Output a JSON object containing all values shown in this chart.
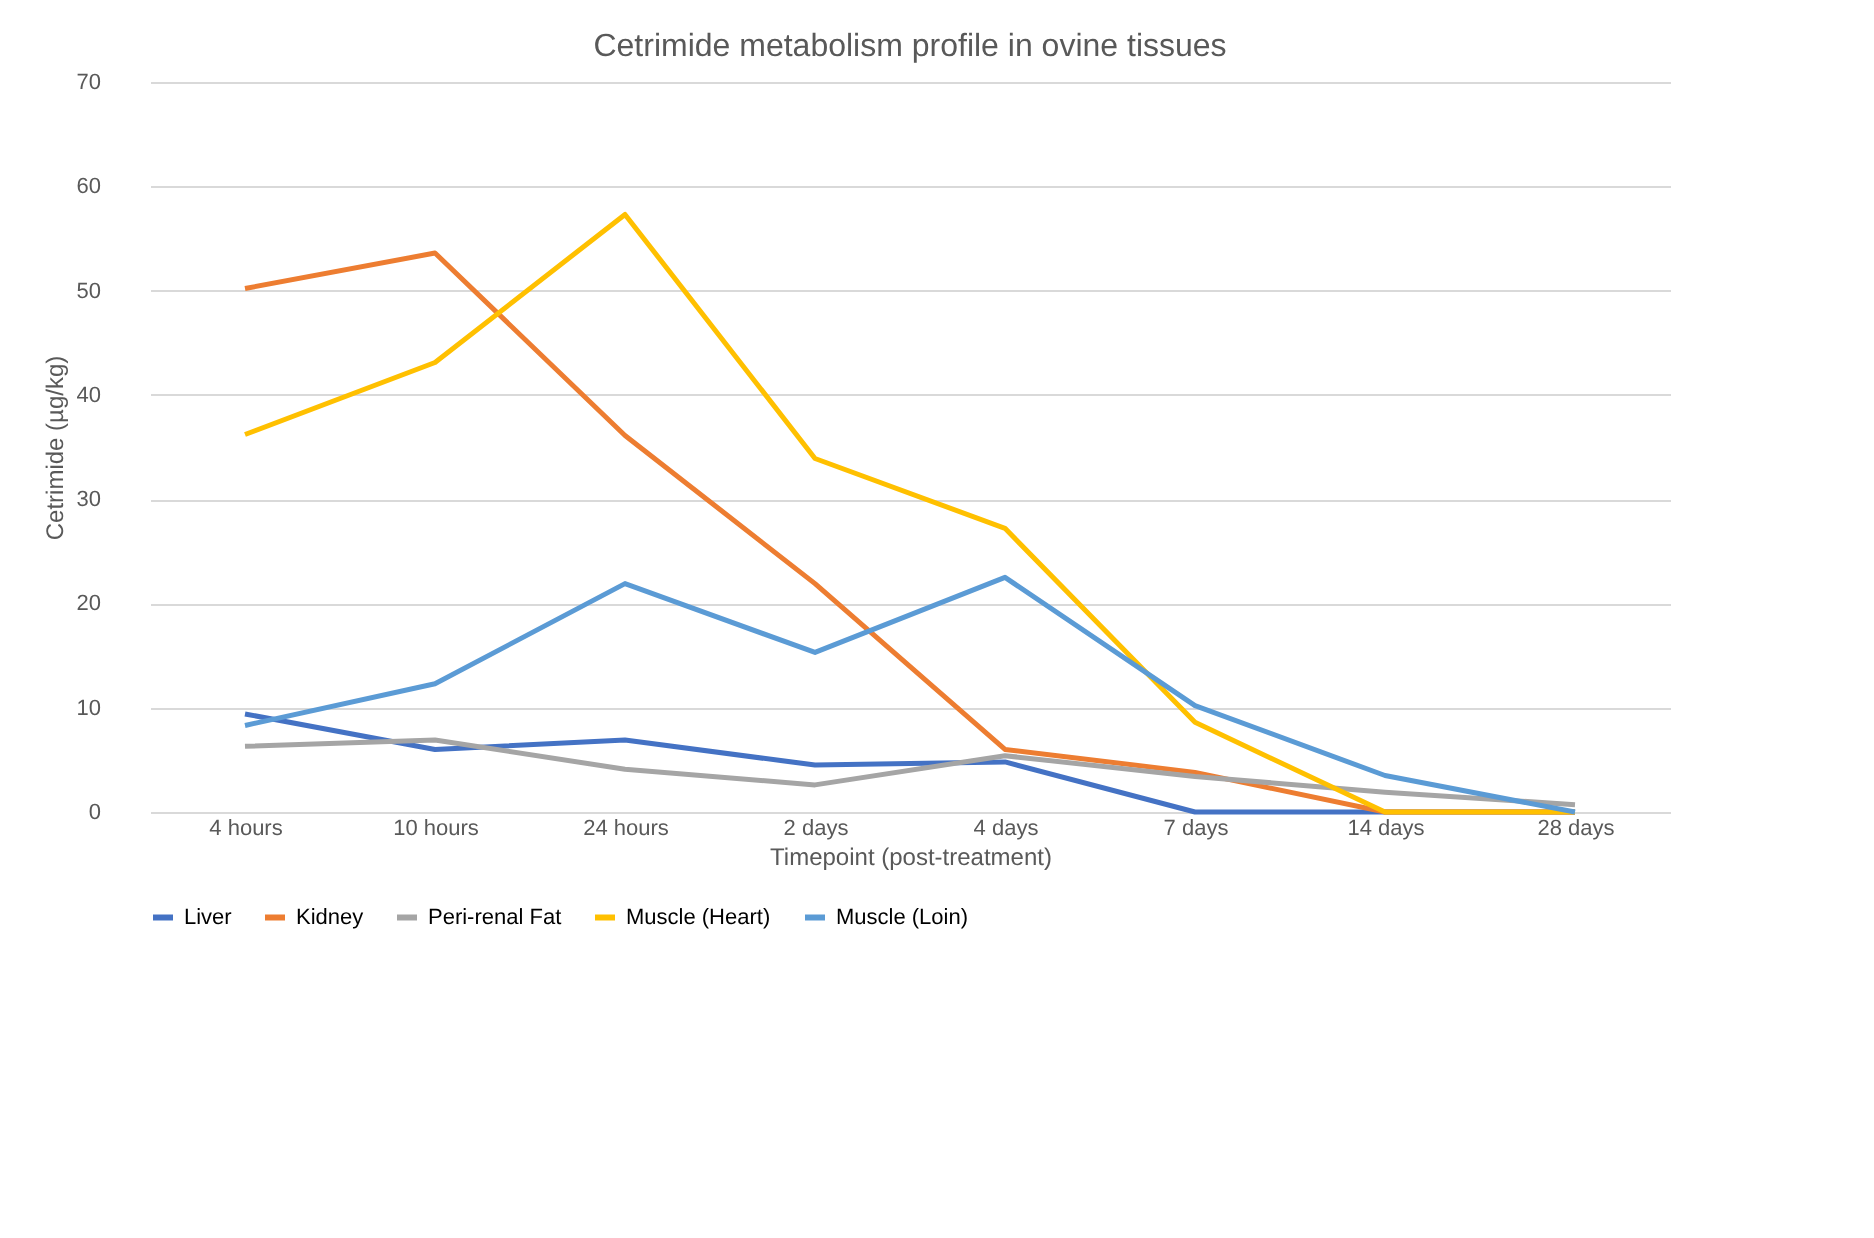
{
  "chart_data": {
    "type": "line",
    "title": "Cetrimide metabolism profile in ovine tissues",
    "xlabel": "Timepoint (post-treatment)",
    "ylabel": "Cetrimide  (µg/kg)",
    "categories": [
      "4 hours",
      "10 hours",
      "24 hours",
      "2 days",
      "4 days",
      "7 days",
      "14 days",
      "28 days"
    ],
    "series": [
      {
        "name": "Liver",
        "color": "#4472c4",
        "values": [
          9.4,
          6.0,
          6.9,
          4.5,
          4.8,
          0,
          0,
          0
        ]
      },
      {
        "name": "Kidney",
        "color": "#ed7d31",
        "values": [
          50.2,
          53.6,
          36.1,
          21.9,
          6.0,
          3.8,
          0,
          0
        ]
      },
      {
        "name": "Peri-renal Fat",
        "color": "#a5a5a5",
        "values": [
          6.3,
          6.9,
          4.1,
          2.6,
          5.4,
          3.4,
          1.9,
          0.7
        ]
      },
      {
        "name": "Muscle (Heart)",
        "color": "#ffc000",
        "values": [
          36.2,
          43.1,
          57.3,
          33.9,
          27.2,
          8.6,
          0,
          0
        ]
      },
      {
        "name": "Muscle (Loin)",
        "color": "#5b9bd5",
        "values": [
          8.3,
          12.3,
          21.9,
          15.3,
          22.5,
          10.2,
          3.5,
          0
        ]
      }
    ],
    "ylim": [
      0,
      70
    ],
    "yticks": [
      0,
      10,
      20,
      30,
      40,
      50,
      60,
      70
    ],
    "grid": "y",
    "legend": "bottom",
    "marker": "none",
    "line_style": "solid"
  }
}
